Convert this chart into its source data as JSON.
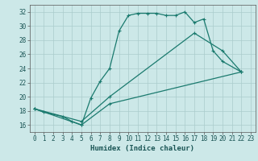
{
  "title": "",
  "xlabel": "Humidex (Indice chaleur)",
  "ylabel": "",
  "bg_color": "#cce8e8",
  "line_color": "#1a7a6e",
  "grid_color": "#aacccc",
  "xlim": [
    -0.5,
    23.5
  ],
  "ylim": [
    15.0,
    33.0
  ],
  "yticks": [
    16,
    18,
    20,
    22,
    24,
    26,
    28,
    30,
    32
  ],
  "xticks": [
    0,
    1,
    2,
    3,
    4,
    5,
    6,
    7,
    8,
    9,
    10,
    11,
    12,
    13,
    14,
    15,
    16,
    17,
    18,
    19,
    20,
    21,
    22,
    23
  ],
  "series_data": {
    "line1_x": [
      0,
      1,
      3,
      4,
      5,
      6,
      7,
      8,
      9,
      10,
      11,
      12,
      13,
      14,
      15,
      16,
      17,
      18,
      19,
      20,
      22
    ],
    "line1_y": [
      18.3,
      17.8,
      17.2,
      16.5,
      16.0,
      19.8,
      22.2,
      24.0,
      29.3,
      31.5,
      31.8,
      31.8,
      31.8,
      31.5,
      31.5,
      32.0,
      30.5,
      31.0,
      26.5,
      25.0,
      23.5
    ],
    "line2_x": [
      0,
      5,
      8,
      17,
      20,
      22
    ],
    "line2_y": [
      18.3,
      16.5,
      20.0,
      29.0,
      26.5,
      23.5
    ],
    "line3_x": [
      0,
      5,
      8,
      22
    ],
    "line3_y": [
      18.3,
      16.0,
      19.0,
      23.5
    ]
  },
  "tick_fontsize": 5.5,
  "xlabel_fontsize": 6.5,
  "marker_size": 3,
  "linewidth": 0.9
}
